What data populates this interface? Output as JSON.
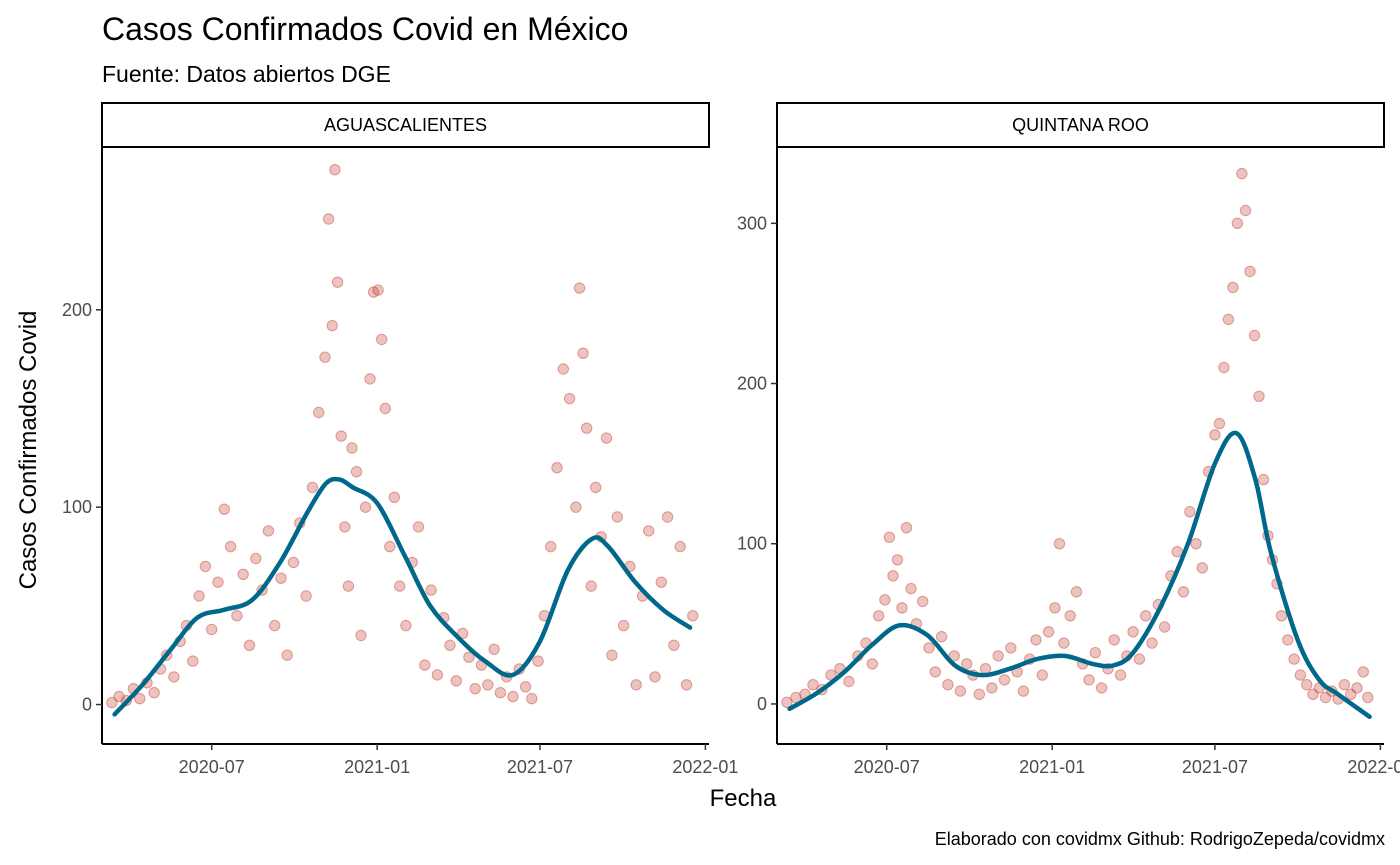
{
  "chart_data": {
    "type": "scatter",
    "title": "Casos Confirmados Covid en México",
    "subtitle": "Fuente: Datos abiertos DGE",
    "xlabel": "Fecha",
    "ylabel": "Casos Confirmados Covid",
    "caption": "Elaborado con covidmx Github: RodrigoZepeda/covidmx",
    "grid": false,
    "legend": "none",
    "x_ticks": [
      "2020-07",
      "2021-01",
      "2021-07",
      "2022-01"
    ],
    "colors": {
      "points": "#c0392b",
      "smooth": "#00688b"
    },
    "panels": [
      {
        "label": "AGUASCALIENTES",
        "xlim": [
          "2020-03-01",
          "2022-01-05"
        ],
        "ylim": [
          -20,
          282
        ],
        "y_ticks": [
          0,
          100,
          200
        ],
        "points": [
          [
            "2020-03-12",
            1
          ],
          [
            "2020-03-20",
            4
          ],
          [
            "2020-03-28",
            2
          ],
          [
            "2020-04-05",
            8
          ],
          [
            "2020-04-12",
            3
          ],
          [
            "2020-04-20",
            11
          ],
          [
            "2020-04-28",
            6
          ],
          [
            "2020-05-05",
            18
          ],
          [
            "2020-05-12",
            25
          ],
          [
            "2020-05-20",
            14
          ],
          [
            "2020-05-27",
            32
          ],
          [
            "2020-06-03",
            40
          ],
          [
            "2020-06-10",
            22
          ],
          [
            "2020-06-17",
            55
          ],
          [
            "2020-06-24",
            70
          ],
          [
            "2020-07-01",
            38
          ],
          [
            "2020-07-08",
            62
          ],
          [
            "2020-07-15",
            99
          ],
          [
            "2020-07-22",
            80
          ],
          [
            "2020-07-29",
            45
          ],
          [
            "2020-08-05",
            66
          ],
          [
            "2020-08-12",
            30
          ],
          [
            "2020-08-19",
            74
          ],
          [
            "2020-08-26",
            58
          ],
          [
            "2020-09-02",
            88
          ],
          [
            "2020-09-09",
            40
          ],
          [
            "2020-09-16",
            64
          ],
          [
            "2020-09-23",
            25
          ],
          [
            "2020-09-30",
            72
          ],
          [
            "2020-10-07",
            92
          ],
          [
            "2020-10-14",
            55
          ],
          [
            "2020-10-21",
            110
          ],
          [
            "2020-10-28",
            148
          ],
          [
            "2020-11-04",
            176
          ],
          [
            "2020-11-08",
            246
          ],
          [
            "2020-11-12",
            192
          ],
          [
            "2020-11-15",
            271
          ],
          [
            "2020-11-18",
            214
          ],
          [
            "2020-11-22",
            136
          ],
          [
            "2020-11-26",
            90
          ],
          [
            "2020-11-30",
            60
          ],
          [
            "2020-12-04",
            130
          ],
          [
            "2020-12-09",
            118
          ],
          [
            "2020-12-14",
            35
          ],
          [
            "2020-12-19",
            100
          ],
          [
            "2020-12-24",
            165
          ],
          [
            "2020-12-28",
            209
          ],
          [
            "2021-01-02",
            210
          ],
          [
            "2021-01-06",
            185
          ],
          [
            "2021-01-10",
            150
          ],
          [
            "2021-01-15",
            80
          ],
          [
            "2021-01-20",
            105
          ],
          [
            "2021-01-26",
            60
          ],
          [
            "2021-02-02",
            40
          ],
          [
            "2021-02-09",
            72
          ],
          [
            "2021-02-16",
            90
          ],
          [
            "2021-02-23",
            20
          ],
          [
            "2021-03-02",
            58
          ],
          [
            "2021-03-09",
            15
          ],
          [
            "2021-03-16",
            44
          ],
          [
            "2021-03-23",
            30
          ],
          [
            "2021-03-30",
            12
          ],
          [
            "2021-04-06",
            36
          ],
          [
            "2021-04-13",
            24
          ],
          [
            "2021-04-20",
            8
          ],
          [
            "2021-04-27",
            20
          ],
          [
            "2021-05-04",
            10
          ],
          [
            "2021-05-11",
            28
          ],
          [
            "2021-05-18",
            6
          ],
          [
            "2021-05-25",
            14
          ],
          [
            "2021-06-01",
            4
          ],
          [
            "2021-06-08",
            18
          ],
          [
            "2021-06-15",
            9
          ],
          [
            "2021-06-22",
            3
          ],
          [
            "2021-06-29",
            22
          ],
          [
            "2021-07-06",
            45
          ],
          [
            "2021-07-13",
            80
          ],
          [
            "2021-07-20",
            120
          ],
          [
            "2021-07-27",
            170
          ],
          [
            "2021-08-03",
            155
          ],
          [
            "2021-08-10",
            100
          ],
          [
            "2021-08-14",
            211
          ],
          [
            "2021-08-18",
            178
          ],
          [
            "2021-08-22",
            140
          ],
          [
            "2021-08-27",
            60
          ],
          [
            "2021-09-01",
            110
          ],
          [
            "2021-09-07",
            85
          ],
          [
            "2021-09-13",
            135
          ],
          [
            "2021-09-19",
            25
          ],
          [
            "2021-09-25",
            95
          ],
          [
            "2021-10-02",
            40
          ],
          [
            "2021-10-09",
            70
          ],
          [
            "2021-10-16",
            10
          ],
          [
            "2021-10-23",
            55
          ],
          [
            "2021-10-30",
            88
          ],
          [
            "2021-11-06",
            14
          ],
          [
            "2021-11-13",
            62
          ],
          [
            "2021-11-20",
            95
          ],
          [
            "2021-11-27",
            30
          ],
          [
            "2021-12-04",
            80
          ],
          [
            "2021-12-11",
            10
          ],
          [
            "2021-12-18",
            45
          ]
        ],
        "smooth": [
          [
            "2020-03-15",
            -5
          ],
          [
            "2020-04-15",
            10
          ],
          [
            "2020-05-15",
            27
          ],
          [
            "2020-06-15",
            44
          ],
          [
            "2020-07-15",
            48
          ],
          [
            "2020-08-15",
            53
          ],
          [
            "2020-09-15",
            72
          ],
          [
            "2020-10-15",
            97
          ],
          [
            "2020-11-05",
            112
          ],
          [
            "2020-11-20",
            114
          ],
          [
            "2020-12-05",
            110
          ],
          [
            "2021-01-01",
            102
          ],
          [
            "2021-02-01",
            75
          ],
          [
            "2021-03-01",
            50
          ],
          [
            "2021-04-01",
            34
          ],
          [
            "2021-05-01",
            22
          ],
          [
            "2021-06-01",
            15
          ],
          [
            "2021-07-01",
            32
          ],
          [
            "2021-08-01",
            68
          ],
          [
            "2021-08-28",
            84
          ],
          [
            "2021-09-15",
            80
          ],
          [
            "2021-10-15",
            62
          ],
          [
            "2021-11-15",
            48
          ],
          [
            "2021-12-15",
            39
          ]
        ]
      },
      {
        "label": "QUINTANA ROO",
        "xlim": [
          "2020-03-01",
          "2022-01-05"
        ],
        "ylim": [
          -25,
          347
        ],
        "y_ticks": [
          0,
          100,
          200,
          300
        ],
        "points": [
          [
            "2020-03-12",
            1
          ],
          [
            "2020-03-22",
            4
          ],
          [
            "2020-04-01",
            6
          ],
          [
            "2020-04-10",
            12
          ],
          [
            "2020-04-20",
            9
          ],
          [
            "2020-04-30",
            18
          ],
          [
            "2020-05-10",
            22
          ],
          [
            "2020-05-20",
            14
          ],
          [
            "2020-05-30",
            30
          ],
          [
            "2020-06-08",
            38
          ],
          [
            "2020-06-15",
            25
          ],
          [
            "2020-06-22",
            55
          ],
          [
            "2020-06-29",
            65
          ],
          [
            "2020-07-04",
            104
          ],
          [
            "2020-07-08",
            80
          ],
          [
            "2020-07-13",
            90
          ],
          [
            "2020-07-18",
            60
          ],
          [
            "2020-07-23",
            110
          ],
          [
            "2020-07-28",
            72
          ],
          [
            "2020-08-03",
            50
          ],
          [
            "2020-08-10",
            64
          ],
          [
            "2020-08-17",
            35
          ],
          [
            "2020-08-24",
            20
          ],
          [
            "2020-08-31",
            42
          ],
          [
            "2020-09-07",
            12
          ],
          [
            "2020-09-14",
            30
          ],
          [
            "2020-09-21",
            8
          ],
          [
            "2020-09-28",
            25
          ],
          [
            "2020-10-05",
            18
          ],
          [
            "2020-10-12",
            6
          ],
          [
            "2020-10-19",
            22
          ],
          [
            "2020-10-26",
            10
          ],
          [
            "2020-11-02",
            30
          ],
          [
            "2020-11-09",
            15
          ],
          [
            "2020-11-16",
            35
          ],
          [
            "2020-11-23",
            20
          ],
          [
            "2020-11-30",
            8
          ],
          [
            "2020-12-07",
            28
          ],
          [
            "2020-12-14",
            40
          ],
          [
            "2020-12-21",
            18
          ],
          [
            "2020-12-28",
            45
          ],
          [
            "2021-01-04",
            60
          ],
          [
            "2021-01-09",
            100
          ],
          [
            "2021-01-14",
            38
          ],
          [
            "2021-01-21",
            55
          ],
          [
            "2021-01-28",
            70
          ],
          [
            "2021-02-04",
            25
          ],
          [
            "2021-02-11",
            15
          ],
          [
            "2021-02-18",
            32
          ],
          [
            "2021-02-25",
            10
          ],
          [
            "2021-03-04",
            22
          ],
          [
            "2021-03-11",
            40
          ],
          [
            "2021-03-18",
            18
          ],
          [
            "2021-03-25",
            30
          ],
          [
            "2021-04-01",
            45
          ],
          [
            "2021-04-08",
            28
          ],
          [
            "2021-04-15",
            55
          ],
          [
            "2021-04-22",
            38
          ],
          [
            "2021-04-29",
            62
          ],
          [
            "2021-05-06",
            48
          ],
          [
            "2021-05-13",
            80
          ],
          [
            "2021-05-20",
            95
          ],
          [
            "2021-05-27",
            70
          ],
          [
            "2021-06-03",
            120
          ],
          [
            "2021-06-10",
            100
          ],
          [
            "2021-06-17",
            85
          ],
          [
            "2021-06-24",
            145
          ],
          [
            "2021-07-01",
            168
          ],
          [
            "2021-07-06",
            175
          ],
          [
            "2021-07-11",
            210
          ],
          [
            "2021-07-16",
            240
          ],
          [
            "2021-07-21",
            260
          ],
          [
            "2021-07-26",
            300
          ],
          [
            "2021-07-31",
            331
          ],
          [
            "2021-08-04",
            308
          ],
          [
            "2021-08-09",
            270
          ],
          [
            "2021-08-14",
            230
          ],
          [
            "2021-08-19",
            192
          ],
          [
            "2021-08-24",
            140
          ],
          [
            "2021-08-29",
            105
          ],
          [
            "2021-09-03",
            90
          ],
          [
            "2021-09-08",
            75
          ],
          [
            "2021-09-13",
            55
          ],
          [
            "2021-09-20",
            40
          ],
          [
            "2021-09-27",
            28
          ],
          [
            "2021-10-04",
            18
          ],
          [
            "2021-10-11",
            12
          ],
          [
            "2021-10-18",
            6
          ],
          [
            "2021-10-25",
            10
          ],
          [
            "2021-11-01",
            4
          ],
          [
            "2021-11-08",
            8
          ],
          [
            "2021-11-15",
            3
          ],
          [
            "2021-11-22",
            12
          ],
          [
            "2021-11-29",
            6
          ],
          [
            "2021-12-06",
            10
          ],
          [
            "2021-12-13",
            20
          ],
          [
            "2021-12-18",
            4
          ]
        ],
        "smooth": [
          [
            "2020-03-15",
            -3
          ],
          [
            "2020-04-15",
            7
          ],
          [
            "2020-05-15",
            20
          ],
          [
            "2020-06-15",
            37
          ],
          [
            "2020-07-15",
            49
          ],
          [
            "2020-08-15",
            43
          ],
          [
            "2020-09-15",
            24
          ],
          [
            "2020-10-15",
            18
          ],
          [
            "2020-11-15",
            22
          ],
          [
            "2020-12-15",
            28
          ],
          [
            "2021-01-15",
            30
          ],
          [
            "2021-02-15",
            25
          ],
          [
            "2021-03-10",
            24
          ],
          [
            "2021-04-01",
            32
          ],
          [
            "2021-05-01",
            60
          ],
          [
            "2021-06-01",
            100
          ],
          [
            "2021-07-01",
            150
          ],
          [
            "2021-07-25",
            169
          ],
          [
            "2021-08-15",
            140
          ],
          [
            "2021-09-01",
            95
          ],
          [
            "2021-10-01",
            40
          ],
          [
            "2021-10-25",
            15
          ],
          [
            "2021-11-15",
            6
          ],
          [
            "2021-12-20",
            -8
          ]
        ]
      }
    ]
  }
}
